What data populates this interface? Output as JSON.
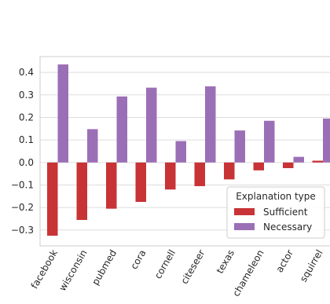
{
  "chart_data": {
    "type": "bar",
    "categories": [
      "facebook",
      "wisconsin",
      "pubmed",
      "cora",
      "cornell",
      "citeseer",
      "texas",
      "chameleon",
      "actor",
      "squirrel"
    ],
    "series": [
      {
        "name": "Sufficient",
        "color": "#c83336",
        "values": [
          -0.325,
          -0.255,
          -0.205,
          -0.175,
          -0.12,
          -0.105,
          -0.075,
          -0.035,
          -0.025,
          0.008
        ]
      },
      {
        "name": "Necessary",
        "color": "#9b6fb6",
        "values": [
          0.435,
          0.148,
          0.293,
          0.332,
          0.095,
          0.338,
          0.142,
          0.185,
          0.025,
          0.195
        ]
      }
    ],
    "ylim": [
      -0.37,
      0.47
    ],
    "yticks": [
      "0.4",
      "0.3",
      "0.2",
      "0.1",
      "0.0",
      "−0.1",
      "−0.2",
      "−0.3"
    ],
    "ytick_values": [
      0.4,
      0.3,
      0.2,
      0.1,
      0.0,
      -0.1,
      -0.2,
      -0.3
    ],
    "legend": {
      "title": "Explanation type",
      "placement": "lower-right"
    },
    "grid": true
  }
}
